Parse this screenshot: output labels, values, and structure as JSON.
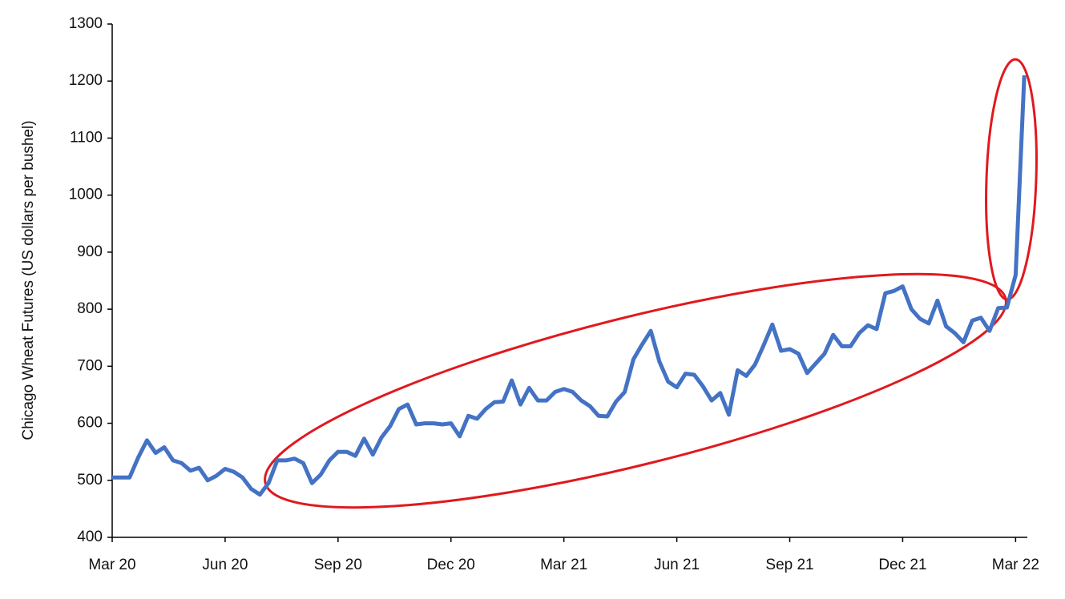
{
  "chart_data": {
    "type": "line",
    "ylabel": "Chicago Wheat Futures (US dollars per bushel)",
    "categories": [
      "Mar 20",
      null,
      null,
      null,
      null,
      null,
      null,
      null,
      null,
      null,
      null,
      null,
      null,
      "Jun 20",
      null,
      null,
      null,
      null,
      null,
      null,
      null,
      null,
      null,
      null,
      null,
      null,
      "Sep 20",
      null,
      null,
      null,
      null,
      null,
      null,
      null,
      null,
      null,
      null,
      null,
      null,
      "Dec 20",
      null,
      null,
      null,
      null,
      null,
      null,
      null,
      null,
      null,
      null,
      null,
      null,
      "Mar 21",
      null,
      null,
      null,
      null,
      null,
      null,
      null,
      null,
      null,
      null,
      null,
      null,
      "Jun 21",
      null,
      null,
      null,
      null,
      null,
      null,
      null,
      null,
      null,
      null,
      null,
      null,
      "Sep 21",
      null,
      null,
      null,
      null,
      null,
      null,
      null,
      null,
      null,
      null,
      null,
      null,
      "Dec 21",
      null,
      null,
      null,
      null,
      null,
      null,
      null,
      null,
      null,
      null,
      null,
      null,
      "Mar 22",
      null
    ],
    "series": [
      {
        "name": "Chicago Wheat Futures",
        "color": "#4472c4",
        "values": [
          505,
          505,
          505,
          540,
          570,
          548,
          558,
          535,
          530,
          517,
          522,
          500,
          508,
          520,
          515,
          505,
          485,
          475,
          495,
          535,
          535,
          538,
          530,
          495,
          510,
          535,
          550,
          550,
          543,
          573,
          545,
          575,
          595,
          625,
          633,
          598,
          600,
          600,
          598,
          600,
          577,
          613,
          608,
          625,
          637,
          638,
          675,
          633,
          662,
          640,
          640,
          655,
          660,
          655,
          640,
          630,
          613,
          612,
          638,
          655,
          712,
          738,
          762,
          708,
          673,
          663,
          687,
          685,
          665,
          640,
          653,
          615,
          693,
          683,
          703,
          737,
          773,
          727,
          730,
          722,
          688,
          705,
          722,
          755,
          735,
          735,
          758,
          772,
          765,
          828,
          832,
          840,
          800,
          783,
          775,
          815,
          770,
          758,
          742,
          780,
          785,
          762,
          802,
          803,
          860,
          1210
        ]
      }
    ],
    "ylim": [
      400,
      1300
    ],
    "yticks": [
      400,
      500,
      600,
      700,
      800,
      900,
      1000,
      1100,
      1200,
      1300
    ],
    "grid": false
  }
}
